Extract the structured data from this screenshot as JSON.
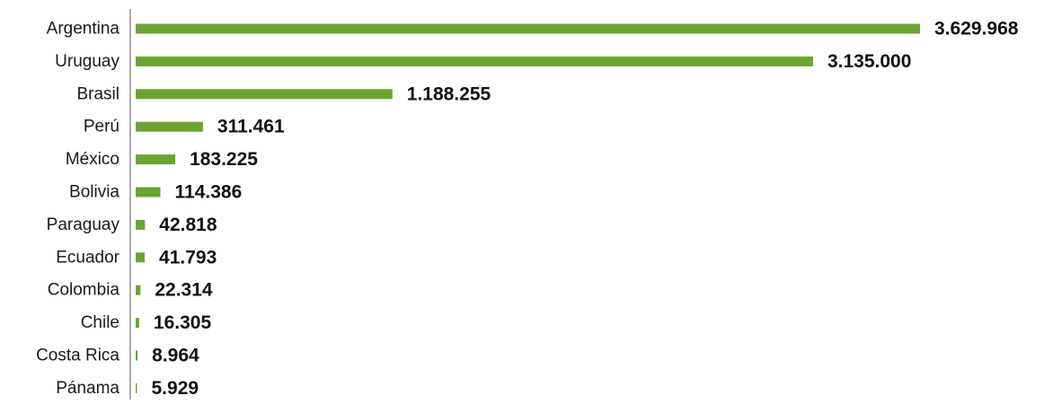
{
  "chart_data": {
    "type": "bar",
    "orientation": "horizontal",
    "categories": [
      "Argentina",
      "Uruguay",
      "Brasil",
      "Perú",
      "México",
      "Bolivia",
      "Paraguay",
      "Ecuador",
      "Colombia",
      "Chile",
      "Costa Rica",
      "Pánama"
    ],
    "values": [
      3629968,
      3135000,
      1188255,
      311461,
      183225,
      114386,
      42818,
      41793,
      22314,
      16305,
      8964,
      5929
    ],
    "value_labels": [
      "3.629.968",
      "3.135.000",
      "1.188.255",
      "311.461",
      "183.225",
      "114.386",
      "42.818",
      "41.793",
      "22.314",
      "16.305",
      "8.964",
      "5.929"
    ],
    "title": "",
    "xlabel": "",
    "ylabel": "",
    "xlim": [
      0,
      3629968
    ],
    "grid": false,
    "legend": "none",
    "bar_color": "#6aa531",
    "axis_color": "#aaaaaa"
  }
}
